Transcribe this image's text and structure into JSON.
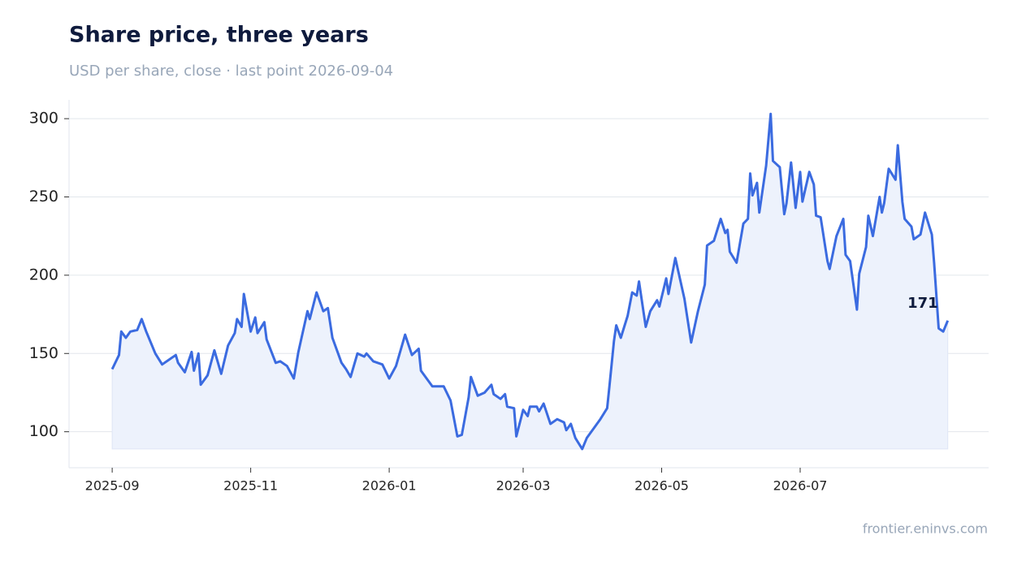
{
  "chart_data": {
    "type": "line",
    "title": "Share price, three years",
    "subtitle": "USD per share, close · last point 2026-09-04",
    "source": "frontier.eninvs.com",
    "grid": true,
    "xlim": [
      "2025-08-13",
      "2026-09-22"
    ],
    "xticks": [
      {
        "value": "2025-09-01",
        "label": "2025-09"
      },
      {
        "value": "2025-11-01",
        "label": "2025-11"
      },
      {
        "value": "2026-01-01",
        "label": "2026-01"
      },
      {
        "value": "2026-03-01",
        "label": "2026-03"
      },
      {
        "value": "2026-05-01",
        "label": "2026-05"
      },
      {
        "value": "2026-07-01",
        "label": "2026-07"
      }
    ],
    "ylim": [
      77,
      312
    ],
    "yticks": [
      100,
      150,
      200,
      250,
      300
    ],
    "x": [
      "2025-09-01",
      "2025-09-04",
      "2025-09-05",
      "2025-09-07",
      "2025-09-09",
      "2025-09-12",
      "2025-09-14",
      "2025-09-16",
      "2025-09-20",
      "2025-09-23",
      "2025-09-26",
      "2025-09-29",
      "2025-09-30",
      "2025-10-03",
      "2025-10-06",
      "2025-10-07",
      "2025-10-09",
      "2025-10-10",
      "2025-10-13",
      "2025-10-16",
      "2025-10-19",
      "2025-10-22",
      "2025-10-25",
      "2025-10-26",
      "2025-10-28",
      "2025-10-29",
      "2025-11-01",
      "2025-11-03",
      "2025-11-04",
      "2025-11-07",
      "2025-11-08",
      "2025-11-12",
      "2025-11-14",
      "2025-11-17",
      "2025-11-20",
      "2025-11-22",
      "2025-11-24",
      "2025-11-26",
      "2025-11-27",
      "2025-11-30",
      "2025-12-03",
      "2025-12-05",
      "2025-12-07",
      "2025-12-11",
      "2025-12-13",
      "2025-12-15",
      "2025-12-18",
      "2025-12-21",
      "2025-12-22",
      "2025-12-25",
      "2025-12-29",
      "2026-01-01",
      "2026-01-04",
      "2026-01-07",
      "2026-01-08",
      "2026-01-11",
      "2026-01-14",
      "2026-01-15",
      "2026-01-20",
      "2026-01-25",
      "2026-01-28",
      "2026-01-31",
      "2026-02-02",
      "2026-02-05",
      "2026-02-06",
      "2026-02-09",
      "2026-02-12",
      "2026-02-15",
      "2026-02-16",
      "2026-02-19",
      "2026-02-21",
      "2026-02-22",
      "2026-02-25",
      "2026-02-26",
      "2026-03-01",
      "2026-03-03",
      "2026-03-04",
      "2026-03-07",
      "2026-03-08",
      "2026-03-10",
      "2026-03-13",
      "2026-03-16",
      "2026-03-19",
      "2026-03-20",
      "2026-03-22",
      "2026-03-24",
      "2026-03-27",
      "2026-03-29",
      "2026-04-01",
      "2026-04-04",
      "2026-04-07",
      "2026-04-08",
      "2026-04-10",
      "2026-04-11",
      "2026-04-13",
      "2026-04-16",
      "2026-04-18",
      "2026-04-20",
      "2026-04-21",
      "2026-04-24",
      "2026-04-26",
      "2026-04-29",
      "2026-04-30",
      "2026-05-03",
      "2026-05-04",
      "2026-05-07",
      "2026-05-11",
      "2026-05-14",
      "2026-05-17",
      "2026-05-20",
      "2026-05-21",
      "2026-05-24",
      "2026-05-27",
      "2026-05-29",
      "2026-05-30",
      "2026-05-31",
      "2026-06-03",
      "2026-06-06",
      "2026-06-08",
      "2026-06-09",
      "2026-06-10",
      "2026-06-12",
      "2026-06-13",
      "2026-06-16",
      "2026-06-18",
      "2026-06-19",
      "2026-06-22",
      "2026-06-24",
      "2026-06-25",
      "2026-06-27",
      "2026-06-29",
      "2026-07-01",
      "2026-07-02",
      "2026-07-05",
      "2026-07-07",
      "2026-07-08",
      "2026-07-10",
      "2026-07-13",
      "2026-07-14",
      "2026-07-17",
      "2026-07-20",
      "2026-07-21",
      "2026-07-23",
      "2026-07-26",
      "2026-07-27",
      "2026-07-30",
      "2026-07-31",
      "2026-08-02",
      "2026-08-05",
      "2026-08-06",
      "2026-08-07",
      "2026-08-09",
      "2026-08-12",
      "2026-08-13",
      "2026-08-15",
      "2026-08-16",
      "2026-08-19",
      "2026-08-20",
      "2026-08-23",
      "2026-08-25",
      "2026-08-28",
      "2026-08-29",
      "2026-08-31",
      "2026-09-02",
      "2026-09-04"
    ],
    "series": [
      {
        "name": "Close",
        "color": "#3b6be0",
        "fill": "#edf2fc",
        "values": [
          140,
          149,
          164,
          160,
          164,
          165,
          172,
          164,
          150,
          143,
          146,
          149,
          144,
          138,
          151,
          139,
          150,
          130,
          136,
          152,
          137,
          155,
          163,
          172,
          167,
          188,
          164,
          173,
          163,
          170,
          159,
          144,
          145,
          142,
          134,
          151,
          164,
          177,
          172,
          189,
          177,
          179,
          160,
          144,
          140,
          135,
          150,
          148,
          150,
          145,
          143,
          134,
          142,
          157,
          162,
          149,
          153,
          139,
          129,
          129,
          120,
          97,
          98,
          122,
          135,
          123,
          125,
          130,
          124,
          121,
          124,
          116,
          115,
          97,
          114,
          110,
          116,
          116,
          113,
          118,
          105,
          108,
          106,
          101,
          105,
          96,
          89,
          96,
          102,
          108,
          115,
          129,
          158,
          168,
          160,
          174,
          189,
          187,
          196,
          167,
          177,
          184,
          180,
          198,
          188,
          211,
          185,
          157,
          177,
          194,
          219,
          222,
          236,
          227,
          229,
          215,
          208,
          233,
          236,
          265,
          251,
          259,
          240,
          270,
          303,
          273,
          269,
          239,
          246,
          272,
          243,
          266,
          247,
          266,
          258,
          238,
          237,
          209,
          204,
          225,
          236,
          213,
          209,
          178,
          201,
          218,
          238,
          225,
          250,
          240,
          246,
          268,
          261,
          283,
          247,
          236,
          231,
          223,
          226,
          240,
          226,
          208,
          166,
          164,
          171
        ]
      }
    ]
  }
}
